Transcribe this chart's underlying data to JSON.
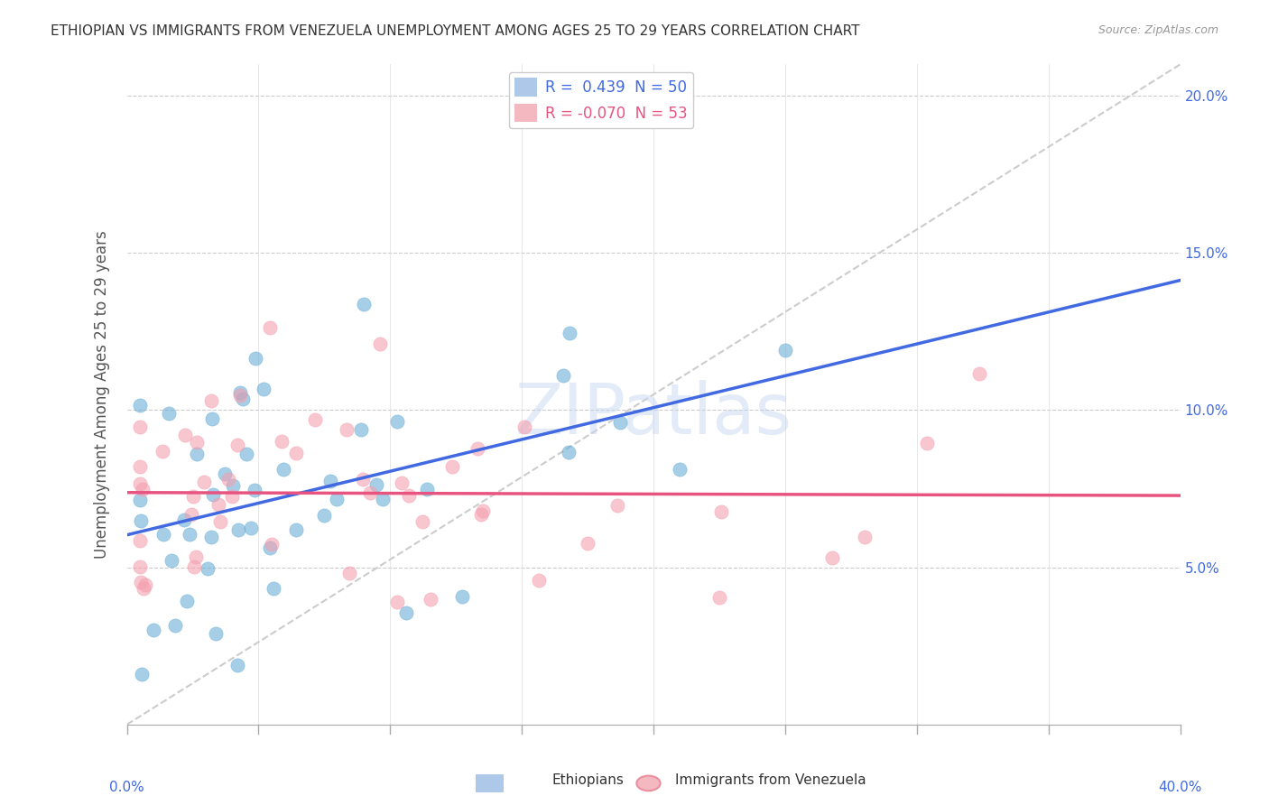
{
  "title": "ETHIOPIAN VS IMMIGRANTS FROM VENEZUELA UNEMPLOYMENT AMONG AGES 25 TO 29 YEARS CORRELATION CHART",
  "source": "Source: ZipAtlas.com",
  "ylabel": "Unemployment Among Ages 25 to 29 years",
  "ylabel_right_ticks": [
    "20.0%",
    "15.0%",
    "10.0%",
    "5.0%"
  ],
  "ylabel_right_values": [
    0.2,
    0.15,
    0.1,
    0.05
  ],
  "legend_entries": [
    {
      "label": "R =  0.439  N = 50",
      "color": "#6baed6"
    },
    {
      "label": "R = -0.070  N = 53",
      "color": "#fb9a99"
    }
  ],
  "ethiopians_R": 0.439,
  "ethiopians_N": 50,
  "venezuela_R": -0.07,
  "venezuela_N": 53,
  "xlim": [
    0.0,
    0.4
  ],
  "ylim": [
    0.0,
    0.21
  ],
  "scatter_blue_color": "#6baed6",
  "scatter_pink_color": "#f4a0b0",
  "line_blue_color": "#4169e1",
  "line_pink_color": "#e75480",
  "diagonal_color": "#cccccc",
  "watermark": "ZIPatlas",
  "background_color": "#ffffff"
}
